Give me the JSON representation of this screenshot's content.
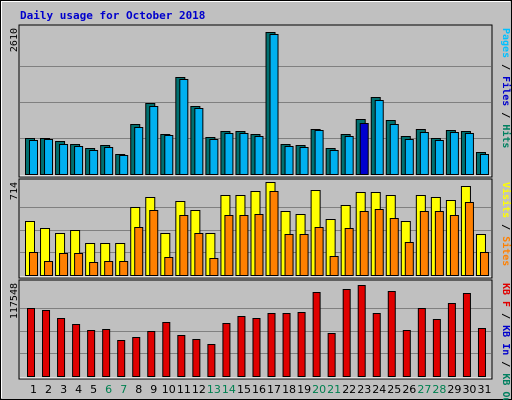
{
  "chart_data": {
    "type": "bar",
    "title": "Daily usage for October 2018",
    "days": [
      "1",
      "2",
      "3",
      "4",
      "5",
      "6",
      "7",
      "8",
      "9",
      "10",
      "11",
      "12",
      "13",
      "14",
      "15",
      "16",
      "17",
      "18",
      "19",
      "20",
      "21",
      "22",
      "23",
      "24",
      "25",
      "26",
      "27",
      "28",
      "29",
      "30",
      "31"
    ],
    "weekend_days": [
      "6",
      "7",
      "13",
      "14",
      "20",
      "21",
      "27",
      "28"
    ],
    "highlight_day": "23",
    "colors": {
      "background": "#c0c0c0",
      "frame": "#000000",
      "grid": "#808080",
      "hits": "#007070",
      "files": "#00b0f0",
      "files_highlight": "#0000d0",
      "pages": "#00d0ff",
      "visits": "#ffff00",
      "sites": "#ff8000",
      "kbytes": "#e00000",
      "weekday_label": "#000000",
      "weekend_label": "#008050"
    },
    "panels": [
      {
        "max_label": "2610",
        "ymax": 2610,
        "right_label": [
          {
            "text": "Pages",
            "color": "#00c0ff"
          },
          {
            "text": " / ",
            "color": "#000000"
          },
          {
            "text": "Files",
            "color": "#0000cc"
          },
          {
            "text": " / ",
            "color": "#000000"
          },
          {
            "text": "Hits",
            "color": "#008060"
          }
        ],
        "series": [
          {
            "key": "hits",
            "values": [
              660,
              660,
              590,
              550,
              470,
              530,
              370,
              910,
              1280,
              730,
              1760,
              1240,
              670,
              780,
              780,
              720,
              2580,
              540,
              530,
              820,
              470,
              730,
              1000,
              1390,
              970,
              690,
              810,
              650,
              800,
              780,
              390
            ]
          },
          {
            "key": "files",
            "values": [
              620,
              630,
              550,
              510,
              440,
              490,
              340,
              860,
              1240,
              700,
              1720,
              1190,
              630,
              740,
              740,
              680,
              2530,
              500,
              490,
              790,
              440,
              680,
              920,
              1350,
              900,
              640,
              770,
              620,
              760,
              740,
              360
            ]
          }
        ]
      },
      {
        "max_label": "714",
        "ymax": 714,
        "right_label": [
          {
            "text": "Visits",
            "color": "#ffff00"
          },
          {
            "text": " / ",
            "color": "#000000"
          },
          {
            "text": "Sites",
            "color": "#ff8000"
          }
        ],
        "series": [
          {
            "key": "visits",
            "values": [
              420,
              370,
              330,
              350,
              250,
              250,
              250,
              530,
              610,
              330,
              580,
              510,
              330,
              630,
              630,
              660,
              730,
              500,
              480,
              670,
              440,
              550,
              650,
              650,
              630,
              420,
              630,
              610,
              590,
              700,
              320
            ]
          },
          {
            "key": "sites",
            "values": [
              180,
              110,
              170,
              170,
              100,
              110,
              110,
              380,
              510,
              140,
              470,
              330,
              130,
              470,
              470,
              480,
              660,
              320,
              320,
              380,
              150,
              370,
              500,
              520,
              450,
              260,
              500,
              500,
              470,
              570,
              180
            ]
          }
        ]
      },
      {
        "max_label": "117548",
        "ymax": 117548,
        "right_label": [
          {
            "text": "KB F",
            "color": "#e00000"
          },
          {
            "text": " / ",
            "color": "#000000"
          },
          {
            "text": "KB In",
            "color": "#0000cc"
          },
          {
            "text": " / ",
            "color": "#000000"
          },
          {
            "text": "KB Out",
            "color": "#008060"
          }
        ],
        "series": [
          {
            "key": "kbytes",
            "values": [
              88000,
              85000,
              75000,
              67000,
              60000,
              61000,
              47000,
              50000,
              58000,
              70000,
              53000,
              48000,
              41000,
              68000,
              77000,
              75000,
              82000,
              82000,
              83000,
              109000,
              55000,
              113000,
              117000,
              82000,
              110000,
              59000,
              88000,
              73000,
              94000,
              107000,
              62000
            ]
          }
        ]
      }
    ]
  }
}
